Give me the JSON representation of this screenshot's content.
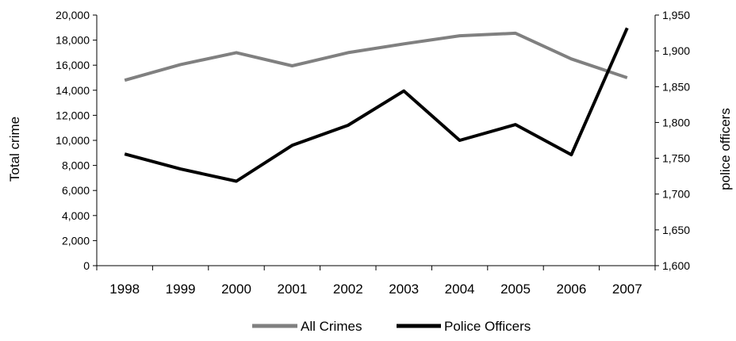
{
  "chart_data": {
    "type": "line",
    "categories": [
      "1998",
      "1999",
      "2000",
      "2001",
      "2002",
      "2003",
      "2004",
      "2005",
      "2006",
      "2007"
    ],
    "series": [
      {
        "name": "All Crimes",
        "axis": "left",
        "color": "#808080",
        "values": [
          14800,
          16050,
          17000,
          15950,
          17000,
          17700,
          18350,
          18550,
          16500,
          15000
        ]
      },
      {
        "name": "Police Officers",
        "axis": "right",
        "color": "#000000",
        "values": [
          1756,
          1735,
          1718,
          1768,
          1796,
          1844,
          1775,
          1797,
          1755,
          1932
        ]
      }
    ],
    "ylabel": "Total crime",
    "ylabel_right": "police officers",
    "ylim": [
      0,
      20000
    ],
    "ylim_right": [
      1600,
      1950
    ],
    "yticks": [
      "0",
      "2,000",
      "4,000",
      "6,000",
      "8,000",
      "10,000",
      "12,000",
      "14,000",
      "16,000",
      "18,000",
      "20,000"
    ],
    "yticks_right": [
      "1,600",
      "1,650",
      "1,700",
      "1,750",
      "1,800",
      "1,850",
      "1,900",
      "1,950"
    ],
    "grid": false,
    "legend_position": "bottom"
  }
}
